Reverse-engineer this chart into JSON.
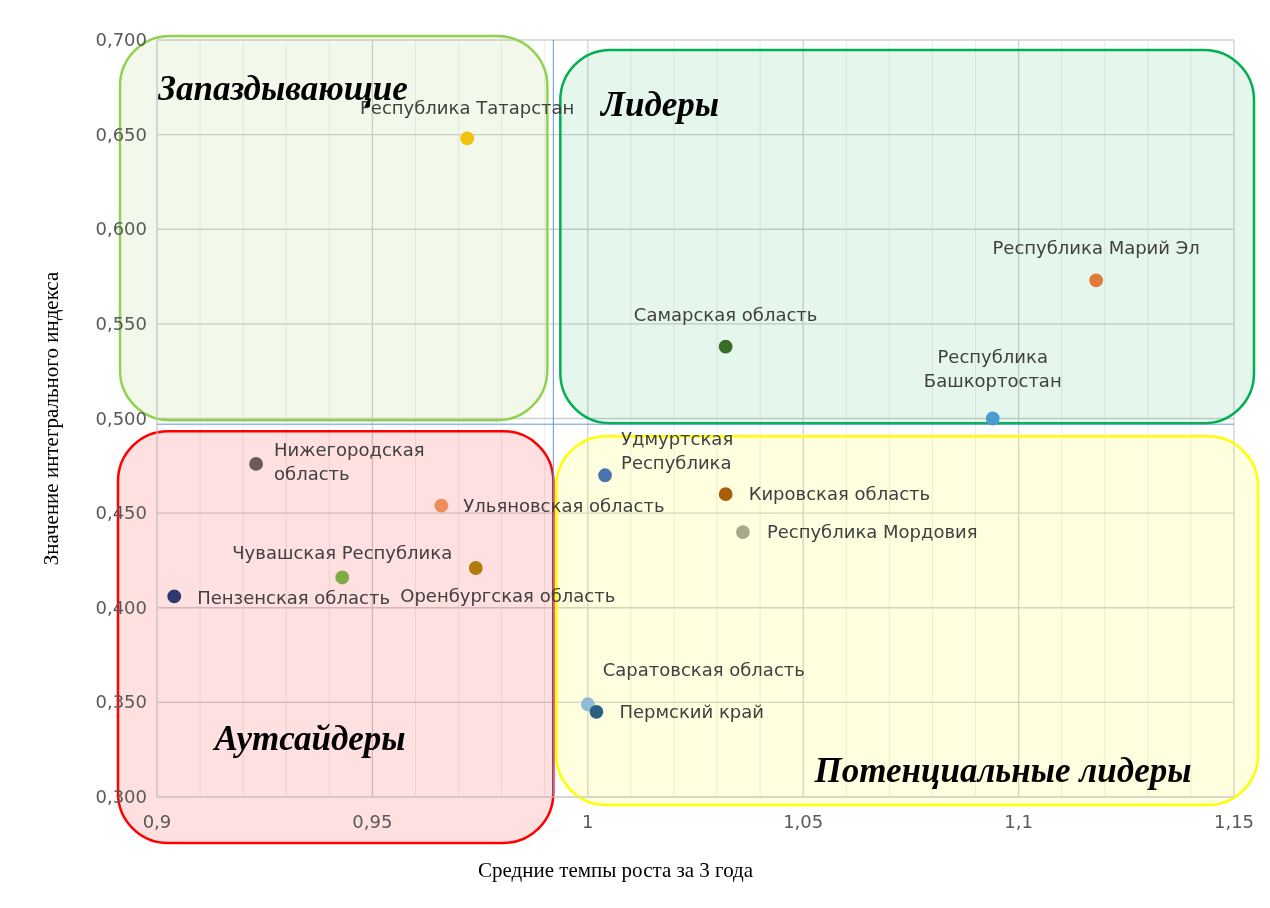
{
  "chart_data": {
    "type": "scatter",
    "xlabel": "Средние темпы роста за 3 года",
    "ylabel": "Значение интегрального индекса",
    "xlim": [
      0.9,
      1.15
    ],
    "ylim": [
      0.3,
      0.7
    ],
    "xticks": [
      {
        "value": 0.9,
        "label": "0,9"
      },
      {
        "value": 0.91,
        "label": null
      },
      {
        "value": 0.92,
        "label": null
      },
      {
        "value": 0.93,
        "label": null
      },
      {
        "value": 0.94,
        "label": null
      },
      {
        "value": 0.95,
        "label": "0,95"
      },
      {
        "value": 0.96,
        "label": null
      },
      {
        "value": 0.97,
        "label": null
      },
      {
        "value": 0.98,
        "label": null
      },
      {
        "value": 0.99,
        "label": null
      },
      {
        "value": 1,
        "label": "1"
      },
      {
        "value": 1.01,
        "label": null
      },
      {
        "value": 1.02,
        "label": null
      },
      {
        "value": 1.03,
        "label": null
      },
      {
        "value": 1.04,
        "label": null
      },
      {
        "value": 1.05,
        "label": "1,05"
      },
      {
        "value": 1.06,
        "label": null
      },
      {
        "value": 1.07,
        "label": null
      },
      {
        "value": 1.08,
        "label": null
      },
      {
        "value": 1.09,
        "label": null
      },
      {
        "value": 1.1,
        "label": "1,1"
      },
      {
        "value": 1.11,
        "label": null
      },
      {
        "value": 1.12,
        "label": null
      },
      {
        "value": 1.13,
        "label": null
      },
      {
        "value": 1.14,
        "label": null
      },
      {
        "value": 1.15,
        "label": "1,15"
      }
    ],
    "yticks": [
      {
        "value": 0.3,
        "label": "0,300"
      },
      {
        "value": 0.35,
        "label": "0,350"
      },
      {
        "value": 0.4,
        "label": "0,400"
      },
      {
        "value": 0.45,
        "label": "0,450"
      },
      {
        "value": 0.5,
        "label": "0,500"
      },
      {
        "value": 0.55,
        "label": "0,550"
      },
      {
        "value": 0.6,
        "label": "0,600"
      },
      {
        "value": 0.65,
        "label": "0,650"
      },
      {
        "value": 0.7,
        "label": "0,700"
      }
    ],
    "grid": true,
    "legend": false,
    "marker": "circle",
    "series": [
      {
        "name": "Республика Татарстан",
        "color": "#f2c10d",
        "x": [
          0.972
        ],
        "values": [
          0.648
        ]
      },
      {
        "name": "Республика Марий Эл",
        "color": "#e07b39",
        "x": [
          1.118
        ],
        "values": [
          0.573
        ]
      },
      {
        "name": "Самарская область",
        "color": "#3a6b28",
        "x": [
          1.032
        ],
        "values": [
          0.538
        ]
      },
      {
        "name": "Республика Башкортостан",
        "color": "#4a9bd0",
        "x": [
          1.094
        ],
        "values": [
          0.5
        ]
      },
      {
        "name": "Нижегородская область",
        "color": "#6e5a5a",
        "x": [
          0.923
        ],
        "values": [
          0.476
        ]
      },
      {
        "name": "Ульяновская область",
        "color": "#f08b5a",
        "x": [
          0.966
        ],
        "values": [
          0.454
        ]
      },
      {
        "name": "Чувашская Республика",
        "color": "#7fa847",
        "x": [
          0.943
        ],
        "values": [
          0.416
        ]
      },
      {
        "name": "Оренбургская область",
        "color": "#b07a10",
        "x": [
          0.974
        ],
        "values": [
          0.421
        ]
      },
      {
        "name": "Пензенская область",
        "color": "#2e3a6e",
        "x": [
          0.904
        ],
        "values": [
          0.406
        ]
      },
      {
        "name": "Удмуртская Республика",
        "color": "#4a74b0",
        "x": [
          1.004
        ],
        "values": [
          0.47
        ]
      },
      {
        "name": "Кировская область",
        "color": "#a85e08",
        "x": [
          1.032
        ],
        "values": [
          0.46
        ]
      },
      {
        "name": "Республика Мордовия",
        "color": "#a8a888",
        "x": [
          1.036
        ],
        "values": [
          0.44
        ]
      },
      {
        "name": "Саратовская область",
        "color": "#8fbcd8",
        "x": [
          1.0
        ],
        "values": [
          0.349
        ]
      },
      {
        "name": "Пермский край",
        "color": "#2a6080",
        "x": [
          1.002
        ],
        "values": [
          0.345
        ]
      }
    ],
    "ref_lines": [
      {
        "axis": "x",
        "value": 0.992,
        "color": "#5b9bd5"
      },
      {
        "axis": "y",
        "value": 0.497,
        "color": "#5b9bd5"
      }
    ],
    "annotations": [
      "Запаздывающие",
      "Лидеры",
      "Аутсайдеры",
      "Потенциальные лидеры"
    ]
  }
}
